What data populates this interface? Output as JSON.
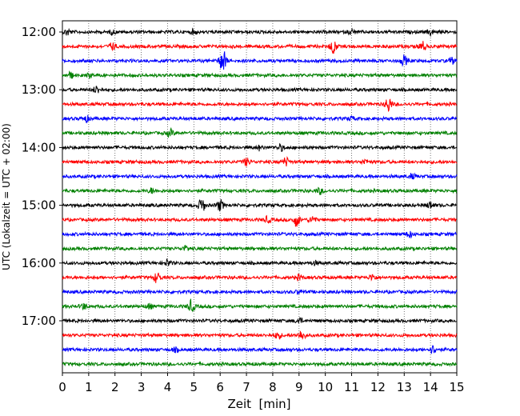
{
  "chart_data": {
    "type": "line",
    "title": "",
    "xlabel": "Zeit  [min]",
    "ylabel": "UTC (Lokalzeit = UTC + 02:00)",
    "xlim": [
      0,
      15
    ],
    "x_ticks": [
      "0",
      "1",
      "2",
      "3",
      "4",
      "5",
      "6",
      "7",
      "8",
      "9",
      "10",
      "11",
      "12",
      "13",
      "14",
      "15"
    ],
    "y_tick_labels": [
      "12:00",
      "13:00",
      "14:00",
      "15:00",
      "16:00",
      "17:00"
    ],
    "grid": "vertical dotted at each minute",
    "trace_interval_minutes": 15,
    "traces": [
      {
        "start": "12:00",
        "color": "#000000",
        "events": [
          [
            0.2,
            0.5
          ],
          [
            1.9,
            0.3
          ],
          [
            5.0,
            0.35
          ],
          [
            11.0,
            0.4
          ],
          [
            14.0,
            0.5
          ]
        ]
      },
      {
        "start": "12:15",
        "color": "#ff0000",
        "events": [
          [
            1.9,
            0.6
          ],
          [
            10.3,
            1.2
          ],
          [
            13.7,
            0.8
          ]
        ]
      },
      {
        "start": "12:30",
        "color": "#0000ff",
        "events": [
          [
            6.1,
            2.0
          ],
          [
            13.0,
            0.8
          ],
          [
            14.8,
            0.5
          ]
        ]
      },
      {
        "start": "12:45",
        "color": "#008000",
        "events": [
          [
            0.3,
            0.5
          ],
          [
            1.0,
            0.3
          ]
        ]
      },
      {
        "start": "13:00",
        "color": "#000000",
        "events": [
          [
            1.3,
            0.6
          ]
        ]
      },
      {
        "start": "13:15",
        "color": "#ff0000",
        "events": [
          [
            12.4,
            1.3
          ]
        ]
      },
      {
        "start": "13:30",
        "color": "#0000ff",
        "events": [
          [
            0.9,
            0.5
          ],
          [
            11.0,
            0.3
          ]
        ]
      },
      {
        "start": "13:45",
        "color": "#008000",
        "events": [
          [
            4.1,
            0.6
          ]
        ]
      },
      {
        "start": "14:00",
        "color": "#000000",
        "events": [
          [
            7.5,
            0.4
          ],
          [
            8.3,
            0.5
          ]
        ]
      },
      {
        "start": "14:15",
        "color": "#ff0000",
        "events": [
          [
            7.0,
            0.6
          ],
          [
            8.5,
            0.7
          ],
          [
            11.5,
            0.4
          ]
        ]
      },
      {
        "start": "14:30",
        "color": "#0000ff",
        "events": [
          [
            13.3,
            0.4
          ]
        ]
      },
      {
        "start": "14:45",
        "color": "#008000",
        "events": [
          [
            3.4,
            0.4
          ],
          [
            9.8,
            0.5
          ]
        ]
      },
      {
        "start": "15:00",
        "color": "#000000",
        "events": [
          [
            5.3,
            1.2
          ],
          [
            6.0,
            0.9
          ],
          [
            14.0,
            0.6
          ]
        ]
      },
      {
        "start": "15:15",
        "color": "#ff0000",
        "events": [
          [
            7.8,
            0.5
          ],
          [
            8.9,
            1.1
          ],
          [
            9.5,
            0.6
          ]
        ]
      },
      {
        "start": "15:30",
        "color": "#0000ff",
        "events": [
          [
            13.2,
            0.5
          ]
        ]
      },
      {
        "start": "15:45",
        "color": "#008000",
        "events": [
          [
            4.7,
            0.4
          ]
        ]
      },
      {
        "start": "16:00",
        "color": "#000000",
        "events": [
          [
            4.0,
            0.5
          ],
          [
            9.6,
            0.3
          ]
        ]
      },
      {
        "start": "16:15",
        "color": "#ff0000",
        "events": [
          [
            3.6,
            0.9
          ],
          [
            9.0,
            0.4
          ],
          [
            11.8,
            0.5
          ]
        ]
      },
      {
        "start": "16:30",
        "color": "#0000ff",
        "events": [
          [
            9.0,
            0.3
          ]
        ]
      },
      {
        "start": "16:45",
        "color": "#008000",
        "events": [
          [
            0.8,
            0.5
          ],
          [
            3.3,
            0.4
          ],
          [
            4.9,
            1.0
          ]
        ]
      },
      {
        "start": "17:00",
        "color": "#000000",
        "events": [
          [
            9.0,
            0.5
          ]
        ]
      },
      {
        "start": "17:15",
        "color": "#ff0000",
        "events": [
          [
            8.2,
            0.6
          ],
          [
            9.1,
            0.8
          ]
        ]
      },
      {
        "start": "17:30",
        "color": "#0000ff",
        "events": [
          [
            14.1,
            0.7
          ],
          [
            4.3,
            0.3
          ]
        ]
      },
      {
        "start": "17:45",
        "color": "#008000",
        "events": []
      }
    ]
  }
}
